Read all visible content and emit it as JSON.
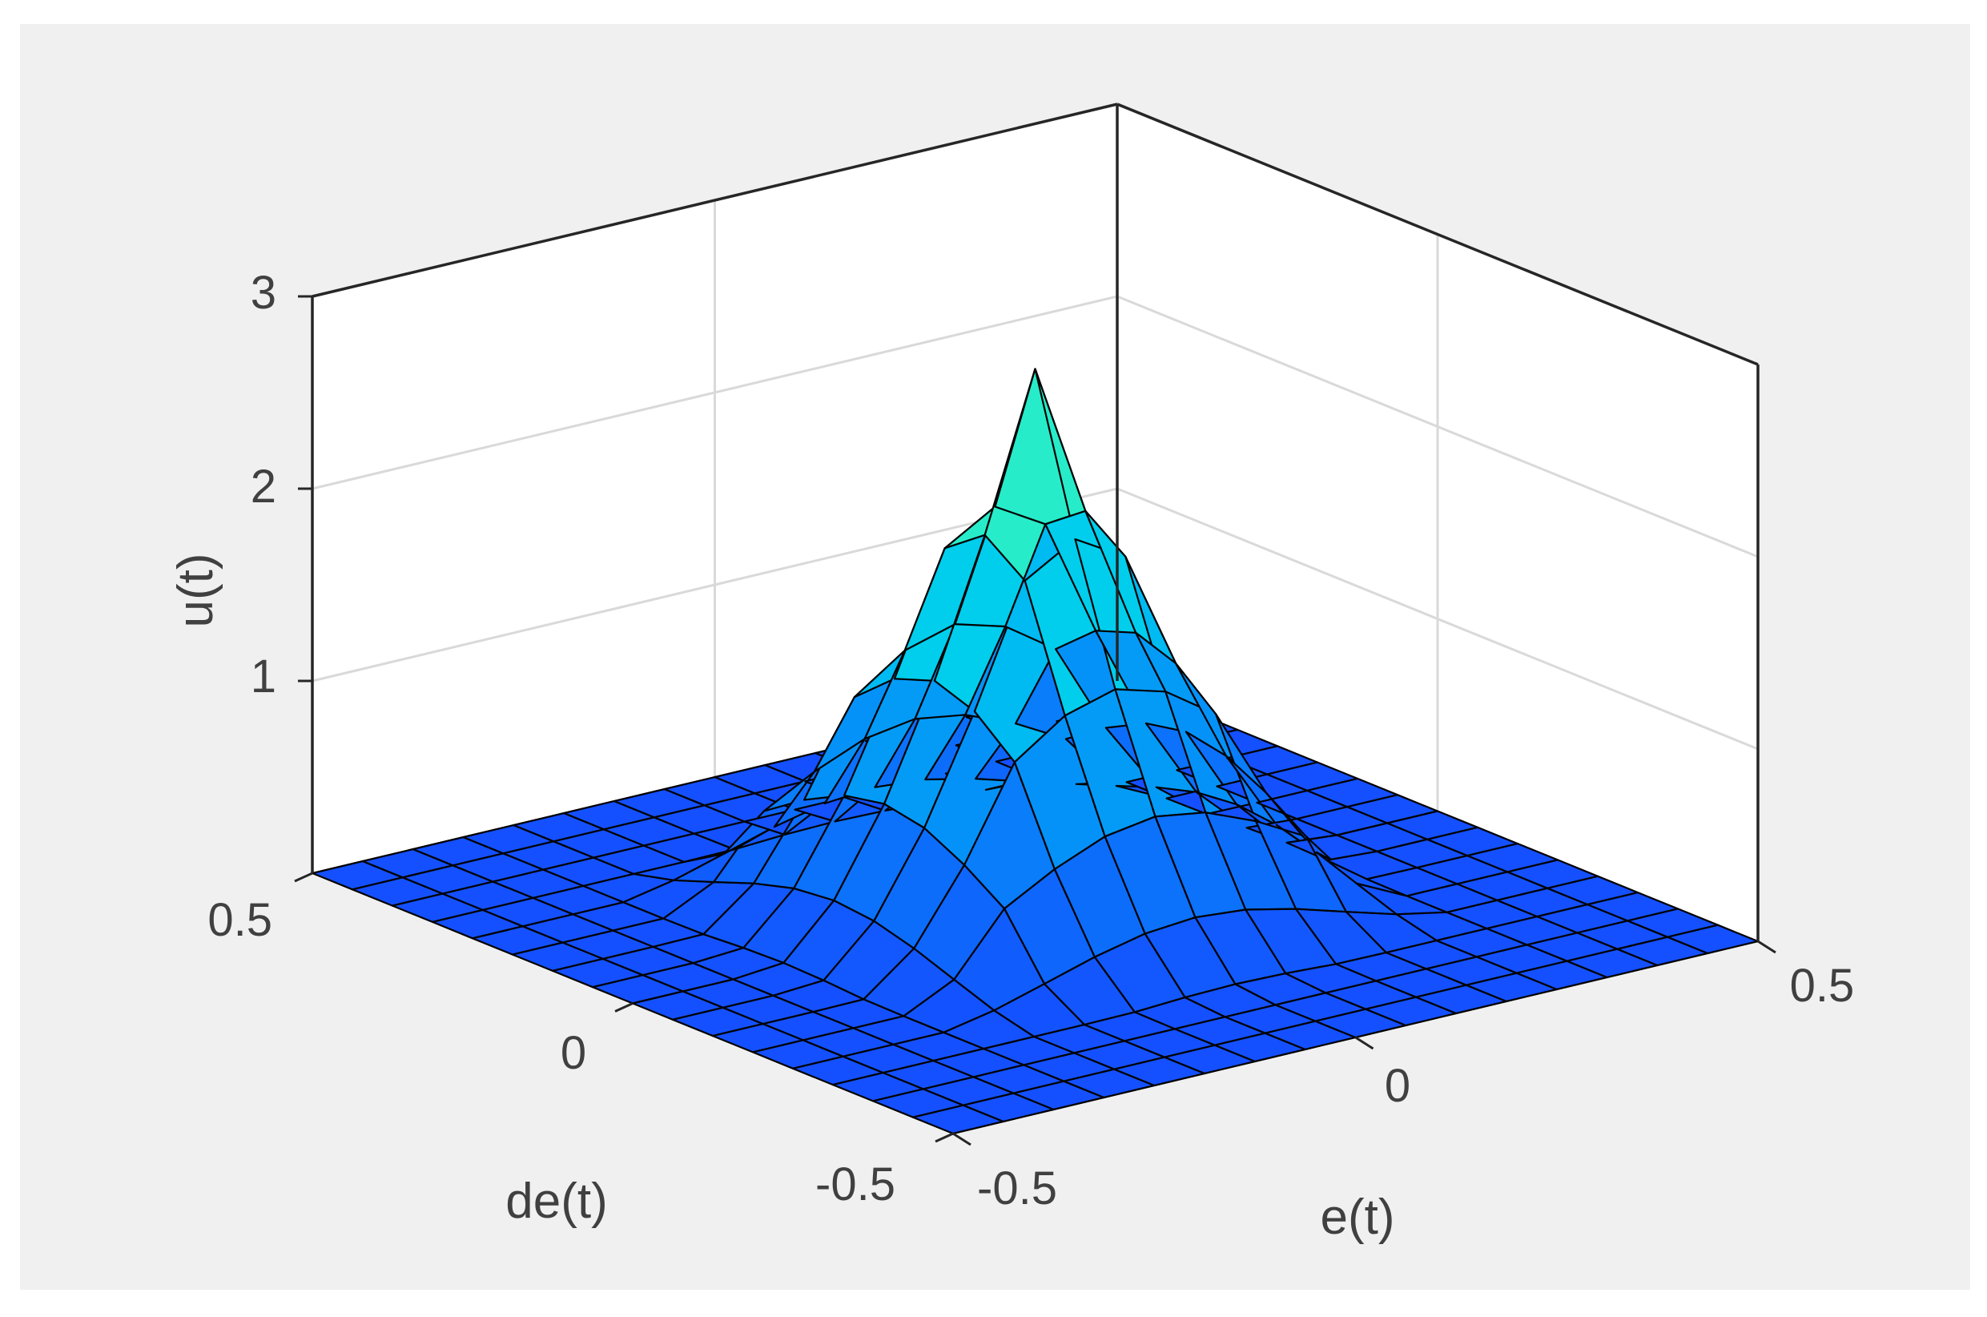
{
  "chart_data": {
    "type": "surface",
    "title": "",
    "xlabel": "e(t)",
    "ylabel": "de(t)",
    "zlabel": "u(t)",
    "xlim": [
      -0.5,
      0.5
    ],
    "ylim": [
      -0.5,
      0.5
    ],
    "zlim": [
      0,
      3
    ],
    "xticks": [
      "-0.5",
      "0",
      "0.5"
    ],
    "yticks": [
      "-0.5",
      "0",
      "0.5"
    ],
    "zticks": [
      "1",
      "2",
      "3"
    ],
    "grid": true,
    "colormap": "parula",
    "x": [
      -0.5,
      -0.4375,
      -0.375,
      -0.3125,
      -0.25,
      -0.1875,
      -0.125,
      -0.0625,
      0,
      0.0625,
      0.125,
      0.1875,
      0.25,
      0.3125,
      0.375,
      0.4375,
      0.5
    ],
    "y": [
      -0.5,
      -0.4375,
      -0.375,
      -0.3125,
      -0.25,
      -0.1875,
      -0.125,
      -0.0625,
      0,
      0.0625,
      0.125,
      0.1875,
      0.25,
      0.3125,
      0.375,
      0.4375,
      0.5
    ],
    "z_peak": 2.8,
    "z_peak_location": [
      0,
      0
    ]
  },
  "colors": {
    "figure_background": "#f0f0f0",
    "axes_background": "#ffffff",
    "grid": "#d9d9d9",
    "axis_line": "#262626",
    "edge": "#000000"
  }
}
